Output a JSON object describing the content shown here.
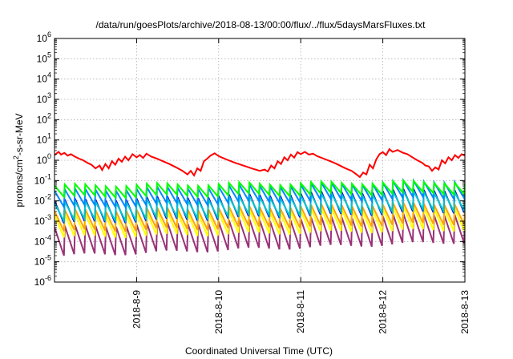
{
  "chart_data": {
    "type": "line",
    "title": "/data/run/goesPlots/archive/2018-08-13/00:00/flux/../flux/5daysMarsFluxes.txt",
    "xlabel": "Coordinated Universal Time (UTC)",
    "ylabel_main": "protons/cm",
    "ylabel_sup": "2",
    "ylabel_rest": "-s-sr-MeV",
    "yscale": "log",
    "ylim_exp": [
      -6,
      6
    ],
    "y_tick_exponents": [
      -6,
      -5,
      -4,
      -3,
      -2,
      -1,
      0,
      1,
      2,
      3,
      4,
      5,
      6
    ],
    "x_ticks": [
      "2018-8-9",
      "2018-8-10",
      "2018-8-11",
      "2018-8-12",
      "2018-8-13"
    ],
    "xlim_days": [
      0,
      5
    ],
    "x_tick_days": [
      1,
      2,
      3,
      4,
      5
    ],
    "grid": true,
    "series": [
      {
        "color": "#ff0000",
        "width": 2,
        "points": [
          [
            0,
            1.8
          ],
          [
            0.05,
            2.6
          ],
          [
            0.08,
            1.9
          ],
          [
            0.12,
            2.3
          ],
          [
            0.16,
            1.7
          ],
          [
            0.2,
            2.0
          ],
          [
            0.25,
            1.5
          ],
          [
            0.3,
            1.2
          ],
          [
            0.35,
            1.0
          ],
          [
            0.4,
            0.75
          ],
          [
            0.45,
            0.6
          ],
          [
            0.5,
            0.4
          ],
          [
            0.55,
            0.55
          ],
          [
            0.58,
            0.33
          ],
          [
            0.62,
            0.65
          ],
          [
            0.66,
            0.4
          ],
          [
            0.7,
            0.9
          ],
          [
            0.74,
            0.6
          ],
          [
            0.78,
            1.2
          ],
          [
            0.82,
            0.85
          ],
          [
            0.86,
            1.5
          ],
          [
            0.9,
            1.0
          ],
          [
            0.95,
            2.0
          ],
          [
            1.0,
            1.4
          ],
          [
            1.04,
            1.8
          ],
          [
            1.08,
            1.3
          ],
          [
            1.12,
            2.1
          ],
          [
            1.18,
            1.5
          ],
          [
            1.25,
            1.2
          ],
          [
            1.32,
            0.9
          ],
          [
            1.4,
            0.65
          ],
          [
            1.48,
            0.45
          ],
          [
            1.56,
            0.3
          ],
          [
            1.62,
            0.2
          ],
          [
            1.66,
            0.3
          ],
          [
            1.7,
            0.18
          ],
          [
            1.74,
            0.4
          ],
          [
            1.78,
            0.3
          ],
          [
            1.82,
            0.9
          ],
          [
            1.86,
            1.2
          ],
          [
            1.9,
            1.7
          ],
          [
            1.95,
            2.2
          ],
          [
            2.0,
            1.6
          ],
          [
            2.05,
            1.3
          ],
          [
            2.12,
            1.0
          ],
          [
            2.2,
            0.75
          ],
          [
            2.3,
            0.55
          ],
          [
            2.4,
            0.4
          ],
          [
            2.5,
            0.3
          ],
          [
            2.56,
            0.35
          ],
          [
            2.6,
            0.28
          ],
          [
            2.64,
            0.55
          ],
          [
            2.68,
            0.4
          ],
          [
            2.72,
            0.9
          ],
          [
            2.76,
            0.65
          ],
          [
            2.8,
            1.4
          ],
          [
            2.84,
            1.0
          ],
          [
            2.88,
            1.9
          ],
          [
            2.92,
            1.35
          ],
          [
            2.96,
            2.5
          ],
          [
            3.0,
            2.0
          ],
          [
            3.05,
            2.6
          ],
          [
            3.1,
            1.9
          ],
          [
            3.15,
            2.1
          ],
          [
            3.2,
            1.6
          ],
          [
            3.28,
            1.2
          ],
          [
            3.36,
            0.9
          ],
          [
            3.44,
            0.65
          ],
          [
            3.52,
            0.45
          ],
          [
            3.58,
            0.35
          ],
          [
            3.62,
            0.3
          ],
          [
            3.68,
            0.2
          ],
          [
            3.72,
            0.15
          ],
          [
            3.76,
            0.25
          ],
          [
            3.8,
            0.2
          ],
          [
            3.84,
            0.6
          ],
          [
            3.88,
            0.4
          ],
          [
            3.92,
            1.1
          ],
          [
            3.96,
            2.0
          ],
          [
            4.0,
            2.5
          ],
          [
            4.04,
            1.8
          ],
          [
            4.08,
            3.5
          ],
          [
            4.12,
            2.6
          ],
          [
            4.18,
            3.2
          ],
          [
            4.24,
            2.4
          ],
          [
            4.3,
            2.0
          ],
          [
            4.36,
            1.4
          ],
          [
            4.42,
            1.0
          ],
          [
            4.48,
            0.75
          ],
          [
            4.52,
            0.55
          ],
          [
            4.56,
            0.5
          ],
          [
            4.6,
            0.3
          ],
          [
            4.64,
            0.45
          ],
          [
            4.68,
            0.35
          ],
          [
            4.72,
            1.0
          ],
          [
            4.76,
            0.7
          ],
          [
            4.8,
            1.4
          ],
          [
            4.84,
            1.0
          ],
          [
            4.88,
            1.8
          ],
          [
            4.92,
            1.3
          ],
          [
            4.96,
            2.0
          ],
          [
            5.0,
            1.7
          ]
        ]
      },
      {
        "color": "#00ff00",
        "width": 2,
        "sawtooth": {
          "base_log": [
            -1.8,
            -1.6
          ],
          "amp": 0.55,
          "teeth": 40
        }
      },
      {
        "color": "#0088ff",
        "width": 2,
        "sawtooth": {
          "base_log": [
            -2.3,
            -1.8
          ],
          "amp": 0.8,
          "teeth": 40
        }
      },
      {
        "color": "#00c8c8",
        "width": 2,
        "sawtooth": {
          "base_log": [
            -3.0,
            -2.4
          ],
          "amp": 0.9,
          "teeth": 40
        }
      },
      {
        "color": "#0000dd",
        "width": 2,
        "sawtooth": {
          "base_log": [
            -3.1,
            -2.5
          ],
          "amp": 1.1,
          "teeth": 40
        }
      },
      {
        "color": "#ffa500",
        "width": 2,
        "sawtooth": {
          "base_log": [
            -3.5,
            -3.1
          ],
          "amp": 1.0,
          "teeth": 40
        }
      },
      {
        "color": "#ffff00",
        "width": 2,
        "sawtooth": {
          "base_log": [
            -3.8,
            -3.4
          ],
          "amp": 1.1,
          "teeth": 40
        }
      },
      {
        "color": "#993377",
        "width": 2,
        "sawtooth": {
          "base_log": [
            -4.7,
            -4.0
          ],
          "amp": 1.4,
          "teeth": 40
        }
      }
    ]
  }
}
